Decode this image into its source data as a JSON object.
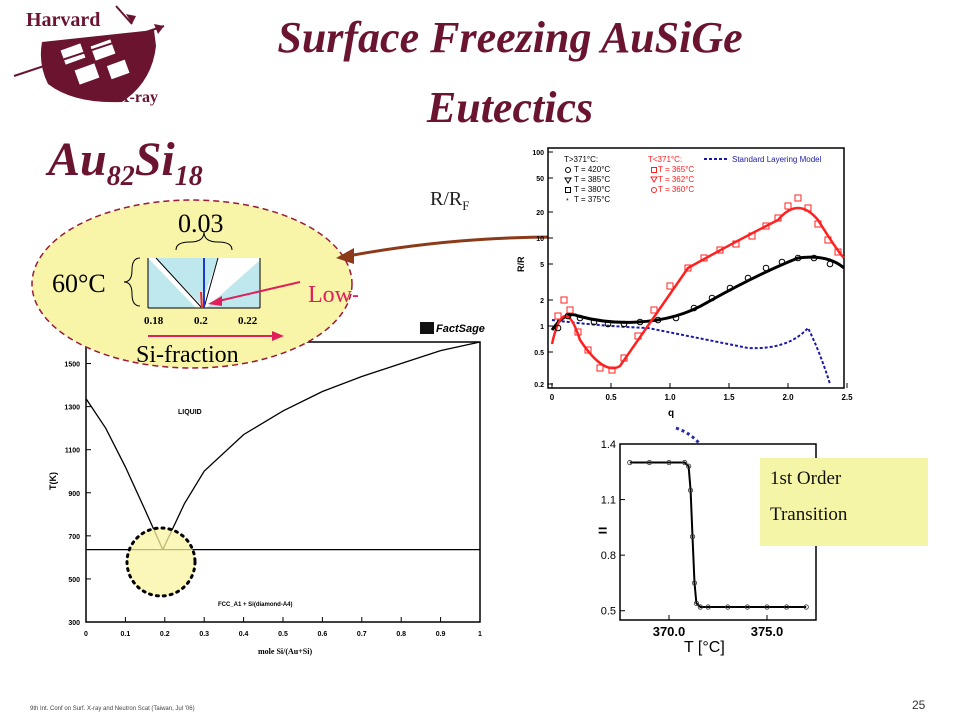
{
  "slide": {
    "title_line1": "Surface Freezing AuSiGe",
    "title_line2": "Eutectics",
    "formula": {
      "el1": "Au",
      "n1": "82",
      "el2": "Si",
      "n2": "18"
    },
    "page_number": "25",
    "footer": "9th Int. Conf on Surf. X-ray and Neutron Scat (Taiwan, Jul '06)"
  },
  "logo": {
    "top_text": "Harvard",
    "bottom_text": "X-ray"
  },
  "inset": {
    "temp_label": "60°C",
    "width_label": "0.03",
    "low_t_label": "Low-T",
    "axis_label": "Si-fraction",
    "ticks": [
      "0.18",
      "0.2",
      "0.22"
    ]
  },
  "rrf_label": {
    "main": "R/R",
    "sub": "F"
  },
  "reflectivity_chart": {
    "y_ticks": [
      "100",
      "50",
      "20",
      "10",
      "5",
      "2",
      "1",
      "0.5",
      "0.2"
    ],
    "x_ticks": [
      "0",
      "0.5",
      "1.0",
      "1.5",
      "2.0",
      "2.5"
    ],
    "ylabel": "R/R",
    "xlabel": "q",
    "legend_left_header": "T>371°C:",
    "legend_left": [
      "T = 420°C",
      "T = 385°C",
      "T = 380°C",
      "T = 375°C"
    ],
    "legend_right_header": "T<371°C:",
    "legend_right": [
      "T = 365°C",
      "T = 362°C",
      "T = 360°C"
    ],
    "legend_model": "Standard Layering Model"
  },
  "chart_data": [
    {
      "type": "line",
      "title": "",
      "xlabel": "mole Si/(Au+Si)",
      "ylabel": "T(K)",
      "xlim": [
        0,
        1
      ],
      "ylim": [
        300,
        1600
      ],
      "x_ticks": [
        "0",
        "0.1",
        "0.2",
        "0.3",
        "0.4",
        "0.5",
        "0.6",
        "0.7",
        "0.8",
        "0.9",
        "1"
      ],
      "y_ticks": [
        "300",
        "500",
        "700",
        "900",
        "1100",
        "1300",
        "1500"
      ],
      "annotations": [
        "LIQUID",
        "FCC_A1 + Si(diamond-A4)"
      ],
      "logo_text": "FactSage",
      "series": [
        {
          "x": [
            0,
            0.05,
            0.1,
            0.15,
            0.195
          ],
          "y": [
            1337,
            1200,
            1020,
            820,
            636
          ]
        },
        {
          "x": [
            0.195,
            0.25,
            0.3,
            0.4,
            0.5,
            0.6,
            0.7,
            0.8,
            0.9,
            1.0
          ],
          "y": [
            636,
            850,
            1000,
            1170,
            1280,
            1370,
            1440,
            1500,
            1560,
            1600
          ]
        },
        {
          "x": [
            0,
            1
          ],
          "y": [
            636,
            636
          ]
        }
      ]
    },
    {
      "type": "line",
      "title": "",
      "xlabel": "T  [°C]",
      "ylabel": "",
      "xlim": [
        367.5,
        377.5
      ],
      "ylim": [
        0.45,
        1.4
      ],
      "x_ticks": [
        "370.0",
        "375.0"
      ],
      "y_ticks": [
        "1.4",
        "1.1",
        "0.8",
        "0.5"
      ],
      "series": [
        {
          "x": [
            368,
            369,
            370,
            370.8,
            371.0,
            371.1,
            371.2,
            371.3,
            371.4,
            371.6,
            372,
            373,
            374,
            375,
            376,
            377
          ],
          "y": [
            1.3,
            1.3,
            1.3,
            1.3,
            1.28,
            1.15,
            0.9,
            0.65,
            0.54,
            0.52,
            0.52,
            0.52,
            0.52,
            0.52,
            0.52,
            0.52
          ]
        }
      ]
    }
  ],
  "transition": {
    "line1": "1st Order",
    "line2": "Transition"
  },
  "colors": {
    "title": "#6b1430",
    "inset_fill": "#f8f4a8",
    "arrow": "#8b3a1a",
    "red_data": "#ff2020",
    "model_blue": "#1a1aaa"
  }
}
